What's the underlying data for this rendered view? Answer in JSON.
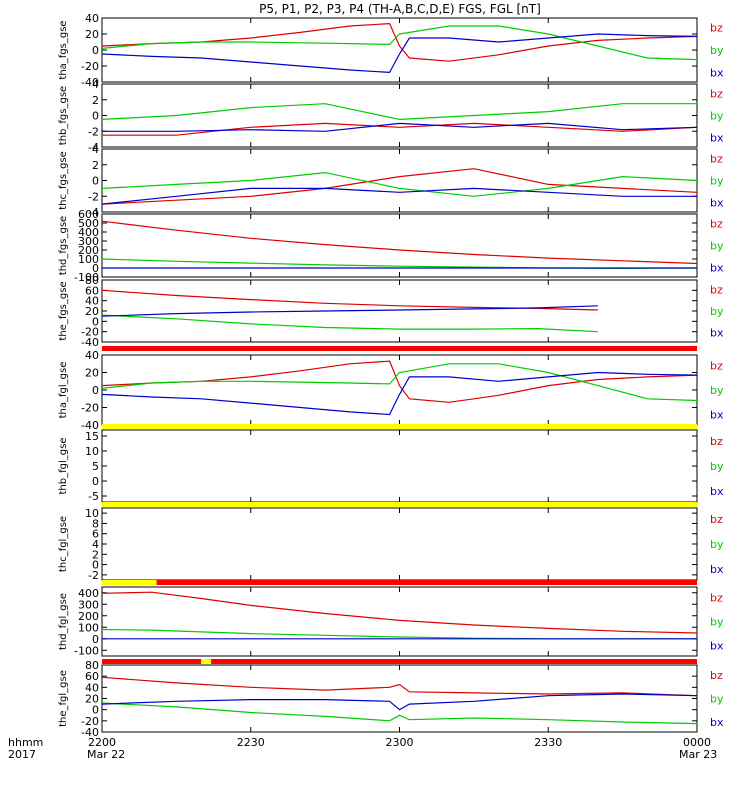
{
  "title": "P5, P1, P2, P3, P4 (TH-A,B,C,D,E) FGS, FGL [nT]",
  "colors": {
    "bx": "#0000cc",
    "by": "#00cc00",
    "bz": "#dd0000",
    "bar_red": "#ff0000",
    "bar_yellow": "#ffff00",
    "bar_black": "#000000"
  },
  "time_axis": {
    "row_label_1": "hhmm",
    "row_label_2": "2017",
    "tick_labels": [
      "2200",
      "2230",
      "2300",
      "2330",
      "0000"
    ],
    "date_labels": [
      "Mar 22",
      "Mar 23"
    ],
    "tick_minutes": [
      0,
      30,
      60,
      90,
      120
    ]
  },
  "legend": [
    "bz",
    "by",
    "bx"
  ],
  "bars": [
    {
      "after_panel": 4,
      "segments": [
        {
          "from": 0,
          "to": 120,
          "color": "red"
        }
      ]
    },
    {
      "after_panel": 5,
      "segments": [
        {
          "from": 0,
          "to": 120,
          "color": "yellow"
        }
      ]
    },
    {
      "after_panel": 6,
      "segments": [
        {
          "from": 0,
          "to": 120,
          "color": "yellow"
        }
      ]
    },
    {
      "after_panel": 7,
      "segments": [
        {
          "from": 0,
          "to": 11,
          "color": "yellow"
        },
        {
          "from": 11,
          "to": 120,
          "color": "red"
        }
      ]
    },
    {
      "after_panel": 8,
      "segments": [
        {
          "from": 0,
          "to": 20,
          "color": "red"
        },
        {
          "from": 20,
          "to": 22,
          "color": "yellow"
        },
        {
          "from": 22,
          "to": 120,
          "color": "red"
        }
      ]
    }
  ],
  "chart_data": [
    {
      "type": "line",
      "ylabel": "tha_fgs_gse",
      "ylim": [
        -40,
        40
      ],
      "yticks": [
        -40,
        -20,
        0,
        20,
        40
      ],
      "x": [
        0,
        10,
        20,
        30,
        40,
        50,
        58,
        60,
        62,
        70,
        80,
        90,
        100,
        110,
        120
      ],
      "series": [
        {
          "name": "bz",
          "values": [
            5,
            8,
            10,
            15,
            22,
            30,
            33,
            5,
            -10,
            -14,
            -6,
            5,
            12,
            15,
            17
          ]
        },
        {
          "name": "by",
          "values": [
            2,
            8,
            10,
            10,
            9,
            8,
            7,
            20,
            22,
            30,
            30,
            20,
            5,
            -10,
            -12
          ]
        },
        {
          "name": "bx",
          "values": [
            -5,
            -8,
            -10,
            -15,
            -20,
            -25,
            -28,
            -5,
            15,
            15,
            10,
            15,
            20,
            18,
            17
          ]
        }
      ]
    },
    {
      "type": "line",
      "ylabel": "thb_fgs_gse",
      "ylim": [
        -4,
        4
      ],
      "yticks": [
        -4,
        -2,
        0,
        2,
        4
      ],
      "x": [
        0,
        15,
        30,
        45,
        60,
        75,
        90,
        105,
        120
      ],
      "series": [
        {
          "name": "bz",
          "values": [
            -2.5,
            -2.5,
            -1.5,
            -1,
            -1.5,
            -1,
            -1.5,
            -2,
            -1.5
          ]
        },
        {
          "name": "by",
          "values": [
            -0.5,
            0,
            1,
            1.5,
            -0.5,
            0,
            0.5,
            1.5,
            1.5
          ]
        },
        {
          "name": "bx",
          "values": [
            -2,
            -2,
            -1.8,
            -2,
            -1,
            -1.5,
            -1,
            -1.8,
            -1.5
          ]
        }
      ]
    },
    {
      "type": "line",
      "ylabel": "thc_fgs_gse",
      "ylim": [
        -4,
        4
      ],
      "yticks": [
        -4,
        -2,
        0,
        2,
        4
      ],
      "x": [
        0,
        15,
        30,
        45,
        60,
        75,
        90,
        105,
        120
      ],
      "series": [
        {
          "name": "bz",
          "values": [
            -3,
            -2.5,
            -2,
            -1,
            0.5,
            1.5,
            -0.5,
            -1,
            -1.5
          ]
        },
        {
          "name": "by",
          "values": [
            -1,
            -0.5,
            0,
            1,
            -1,
            -2,
            -1,
            0.5,
            0
          ]
        },
        {
          "name": "bx",
          "values": [
            -3,
            -2,
            -1,
            -1,
            -1.5,
            -1,
            -1.5,
            -2,
            -2
          ]
        }
      ]
    },
    {
      "type": "line",
      "ylabel": "thd_fgs_gse",
      "ylim": [
        -100,
        600
      ],
      "yticks": [
        -100,
        0,
        100,
        200,
        300,
        400,
        500,
        600
      ],
      "x": [
        0,
        15,
        30,
        45,
        60,
        75,
        90,
        105,
        120
      ],
      "series": [
        {
          "name": "bz",
          "values": [
            520,
            420,
            330,
            260,
            200,
            150,
            110,
            80,
            50
          ]
        },
        {
          "name": "by",
          "values": [
            100,
            75,
            55,
            35,
            20,
            10,
            0,
            -5,
            0
          ]
        },
        {
          "name": "bx",
          "values": [
            0,
            0,
            0,
            0,
            0,
            0,
            0,
            0,
            0
          ]
        }
      ]
    },
    {
      "type": "line",
      "ylabel": "the_fgs_gse",
      "ylim": [
        -40,
        80
      ],
      "yticks": [
        -40,
        -20,
        0,
        20,
        40,
        60,
        80
      ],
      "x": [
        0,
        15,
        30,
        45,
        60,
        75,
        88,
        100
      ],
      "series": [
        {
          "name": "bz",
          "values": [
            60,
            50,
            42,
            35,
            30,
            27,
            25,
            22
          ]
        },
        {
          "name": "by",
          "values": [
            12,
            5,
            -5,
            -12,
            -15,
            -15,
            -14,
            -20
          ]
        },
        {
          "name": "bx",
          "values": [
            10,
            15,
            18,
            20,
            22,
            24,
            26,
            30
          ]
        }
      ]
    },
    {
      "type": "line",
      "ylabel": "tha_fgl_gse",
      "ylim": [
        -40,
        40
      ],
      "yticks": [
        -40,
        -20,
        0,
        20,
        40
      ],
      "x": [
        0,
        10,
        20,
        30,
        40,
        50,
        58,
        60,
        62,
        70,
        80,
        90,
        100,
        110,
        120
      ],
      "series": [
        {
          "name": "bz",
          "values": [
            5,
            8,
            10,
            15,
            22,
            30,
            33,
            5,
            -10,
            -14,
            -6,
            5,
            12,
            15,
            17
          ]
        },
        {
          "name": "by",
          "values": [
            2,
            8,
            10,
            10,
            9,
            8,
            7,
            20,
            22,
            30,
            30,
            20,
            5,
            -10,
            -12
          ]
        },
        {
          "name": "bx",
          "values": [
            -5,
            -8,
            -10,
            -15,
            -20,
            -25,
            -28,
            -5,
            15,
            15,
            10,
            15,
            20,
            18,
            17
          ]
        }
      ]
    },
    {
      "type": "line",
      "ylabel": "thb_fgl_gse",
      "ylim": [
        -7,
        17
      ],
      "yticks": [
        -5,
        0,
        5,
        10,
        15
      ],
      "series": []
    },
    {
      "type": "line",
      "ylabel": "thc_fgl_gse",
      "ylim": [
        -3,
        11
      ],
      "yticks": [
        -2,
        0,
        2,
        4,
        6,
        8,
        10
      ],
      "series": []
    },
    {
      "type": "line",
      "ylabel": "thd_fgl_gse",
      "ylim": [
        -150,
        450
      ],
      "yticks": [
        -100,
        0,
        100,
        200,
        300,
        400
      ],
      "x": [
        0,
        10,
        20,
        30,
        45,
        60,
        75,
        90,
        105,
        120
      ],
      "series": [
        {
          "name": "bz",
          "values": [
            395,
            405,
            350,
            290,
            220,
            160,
            120,
            90,
            65,
            50
          ]
        },
        {
          "name": "by",
          "values": [
            80,
            75,
            60,
            45,
            30,
            15,
            5,
            0,
            0,
            0
          ]
        },
        {
          "name": "bx",
          "values": [
            0,
            0,
            0,
            0,
            0,
            0,
            0,
            0,
            0,
            0
          ]
        }
      ]
    },
    {
      "type": "line",
      "ylabel": "the_fgl_gse",
      "ylim": [
        -40,
        80
      ],
      "yticks": [
        -40,
        -20,
        0,
        20,
        40,
        60,
        80
      ],
      "x": [
        0,
        15,
        30,
        45,
        58,
        60,
        62,
        75,
        90,
        105,
        120
      ],
      "series": [
        {
          "name": "bz",
          "values": [
            58,
            48,
            40,
            35,
            40,
            45,
            32,
            30,
            28,
            30,
            25
          ]
        },
        {
          "name": "by",
          "values": [
            12,
            5,
            -5,
            -12,
            -20,
            -10,
            -18,
            -15,
            -18,
            -22,
            -25
          ]
        },
        {
          "name": "bx",
          "values": [
            10,
            15,
            18,
            18,
            15,
            0,
            10,
            15,
            25,
            28,
            25
          ]
        }
      ]
    }
  ]
}
